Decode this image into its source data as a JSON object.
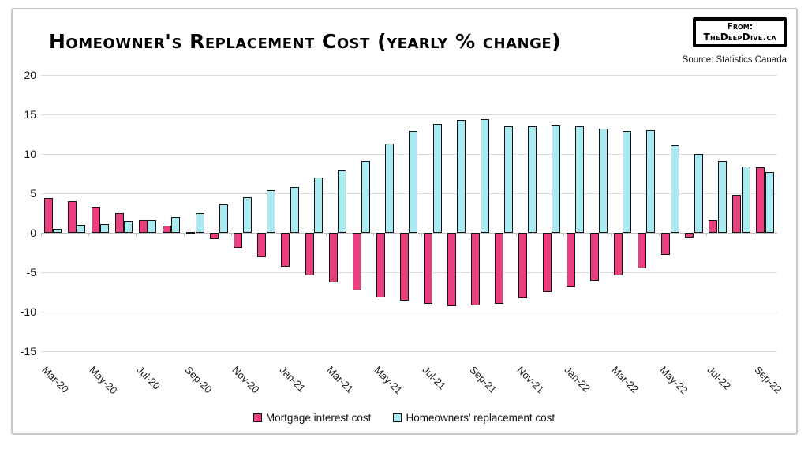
{
  "header": {
    "title": "Homeowner's Replacement Cost (yearly % change)",
    "badge": {
      "line1": "From:",
      "line2": "TheDeepDive.ca"
    },
    "source": "Source: Statistics Canada"
  },
  "chart_data": {
    "type": "bar",
    "title": "Homeowner's Replacement Cost (yearly % change)",
    "categories": [
      "Mar-20",
      "Apr-20",
      "May-20",
      "Jun-20",
      "Jul-20",
      "Aug-20",
      "Sep-20",
      "Oct-20",
      "Nov-20",
      "Dec-20",
      "Jan-21",
      "Feb-21",
      "Mar-21",
      "Apr-21",
      "May-21",
      "Jun-21",
      "Jul-21",
      "Aug-21",
      "Sep-21",
      "Oct-21",
      "Nov-21",
      "Dec-21",
      "Jan-22",
      "Feb-22",
      "Mar-22",
      "Apr-22",
      "May-22",
      "Jun-22",
      "Jul-22",
      "Aug-22",
      "Sep-22"
    ],
    "series": [
      {
        "name": "Mortgage interest cost",
        "color": "#E8407E",
        "values": [
          4.4,
          4.0,
          3.3,
          2.5,
          1.6,
          0.9,
          0.1,
          -0.8,
          -1.9,
          -3.1,
          -4.3,
          -5.4,
          -6.3,
          -7.3,
          -8.2,
          -8.6,
          -9.0,
          -9.3,
          -9.2,
          -9.0,
          -8.3,
          -7.5,
          -6.9,
          -6.1,
          -5.4,
          -4.5,
          -2.8,
          -0.6,
          1.6,
          4.8,
          8.3
        ]
      },
      {
        "name": "Homeowners' replacement cost",
        "color": "#AAEBF2",
        "values": [
          0.5,
          1.0,
          1.1,
          1.5,
          1.6,
          2.0,
          2.5,
          3.6,
          4.5,
          5.4,
          5.8,
          7.0,
          7.9,
          9.1,
          11.3,
          12.9,
          13.8,
          14.3,
          14.4,
          13.5,
          13.5,
          13.6,
          13.5,
          13.2,
          12.9,
          13.0,
          11.1,
          10.0,
          9.1,
          8.4,
          7.7
        ]
      }
    ],
    "ylim": [
      -15,
      20
    ],
    "y_ticks": [
      20,
      15,
      10,
      5,
      0,
      -5,
      -10,
      -15
    ],
    "x_tick_labels": [
      "Mar-20",
      "May-20",
      "Jul-20",
      "Sep-20",
      "Nov-20",
      "Jan-21",
      "Mar-21",
      "May-21",
      "Jul-21",
      "Sep-21",
      "Nov-21",
      "Jan-22",
      "Mar-22",
      "May-22",
      "Jul-22",
      "Sep-22"
    ],
    "x_label_every": 2,
    "xlabel": "",
    "ylabel": "",
    "grid": true,
    "legend_position": "bottom",
    "bar_border_color": "#141414"
  }
}
